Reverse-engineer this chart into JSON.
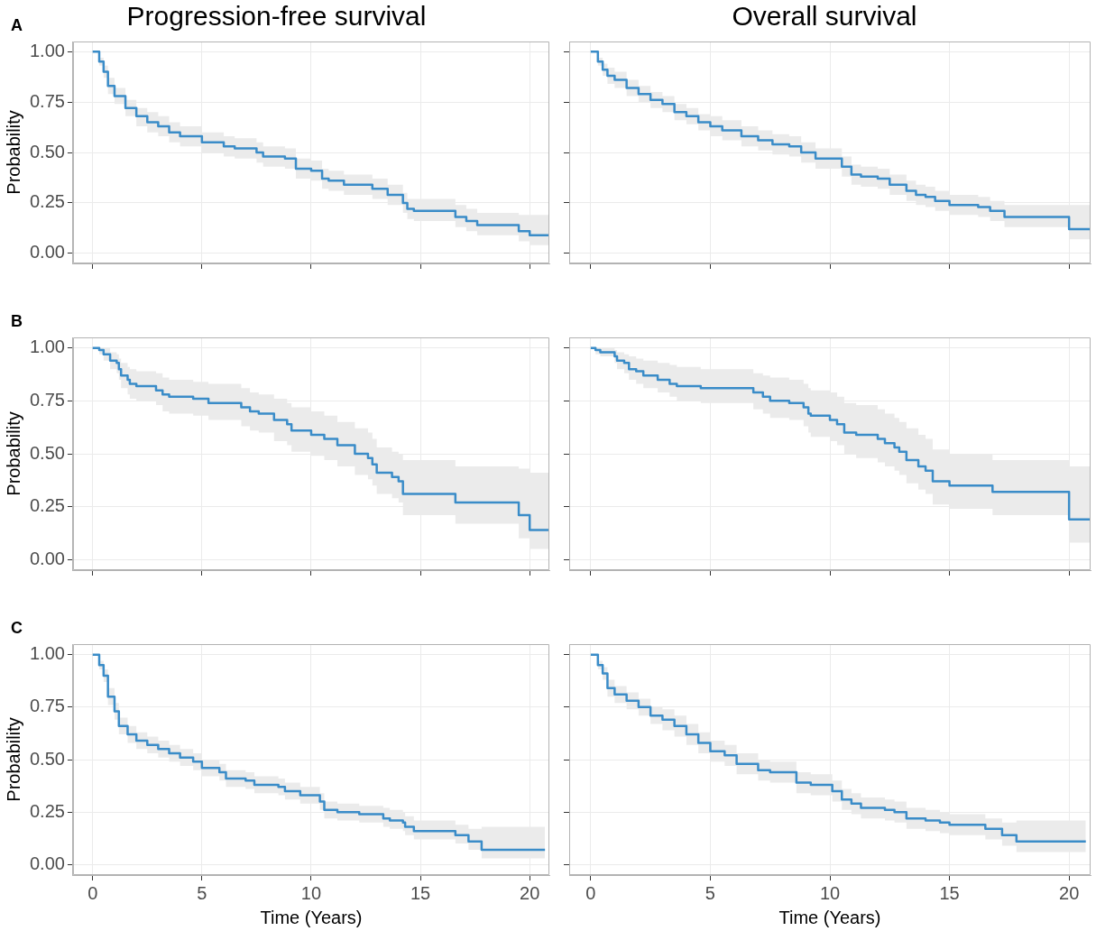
{
  "chart_data": [
    {
      "type": "step",
      "title": "Progression-free survival",
      "annotations": [
        "A"
      ],
      "ylabel": "Probability",
      "tick_labels": "y",
      "grid": true,
      "xlim": [
        -0.9,
        20.9
      ],
      "xticks": [
        {
          "value": 0,
          "label": null
        },
        {
          "value": 5,
          "label": null
        },
        {
          "value": 10,
          "label": null
        },
        {
          "value": 15,
          "label": null
        },
        {
          "value": 20,
          "label": null
        }
      ],
      "ylim": [
        -0.05,
        1.05
      ],
      "yticks": [
        {
          "value": 0,
          "label": "0.00"
        },
        {
          "value": 0.25,
          "label": "0.25"
        },
        {
          "value": 0.5,
          "label": "0.50"
        },
        {
          "value": 0.75,
          "label": "0.75"
        },
        {
          "value": 1,
          "label": "1.00"
        }
      ],
      "series": [
        {
          "color": "#3a8cc8",
          "x": [
            0,
            0.3,
            0.5,
            0.7,
            1.0,
            1.5,
            2.0,
            2.5,
            3.0,
            3.5,
            4.0,
            5.0,
            6.0,
            6.5,
            7.5,
            7.8,
            8.8,
            9.3,
            10.0,
            10.5,
            10.8,
            11.5,
            12.8,
            13.5,
            14.2,
            14.4,
            14.7,
            16.6,
            17.1,
            17.6,
            19.5,
            20.0,
            20.9
          ],
          "values": [
            1.0,
            0.95,
            0.9,
            0.83,
            0.78,
            0.72,
            0.68,
            0.65,
            0.63,
            0.6,
            0.58,
            0.55,
            0.53,
            0.52,
            0.5,
            0.48,
            0.47,
            0.42,
            0.41,
            0.37,
            0.36,
            0.34,
            0.32,
            0.29,
            0.25,
            0.22,
            0.21,
            0.18,
            0.16,
            0.14,
            0.11,
            0.09,
            0.09
          ],
          "lower": [
            1.0,
            0.93,
            0.87,
            0.79,
            0.74,
            0.68,
            0.63,
            0.6,
            0.58,
            0.55,
            0.53,
            0.5,
            0.48,
            0.47,
            0.45,
            0.43,
            0.42,
            0.37,
            0.36,
            0.32,
            0.31,
            0.29,
            0.27,
            0.24,
            0.2,
            0.17,
            0.16,
            0.13,
            0.11,
            0.09,
            0.06,
            0.04,
            0.04
          ],
          "upper": [
            1.0,
            0.97,
            0.93,
            0.87,
            0.82,
            0.76,
            0.72,
            0.7,
            0.68,
            0.65,
            0.63,
            0.6,
            0.58,
            0.57,
            0.55,
            0.53,
            0.52,
            0.47,
            0.46,
            0.42,
            0.41,
            0.39,
            0.37,
            0.34,
            0.3,
            0.27,
            0.27,
            0.24,
            0.22,
            0.2,
            0.19,
            0.19,
            0.19
          ]
        }
      ]
    },
    {
      "type": "step",
      "title": "Overall survival",
      "tick_labels": false,
      "grid": true,
      "xlim": [
        -0.9,
        20.9
      ],
      "xticks": [
        {
          "value": 0,
          "label": null
        },
        {
          "value": 5,
          "label": null
        },
        {
          "value": 10,
          "label": null
        },
        {
          "value": 15,
          "label": null
        },
        {
          "value": 20,
          "label": null
        }
      ],
      "ylim": [
        -0.05,
        1.05
      ],
      "yticks": [
        {
          "value": 0,
          "label": null
        },
        {
          "value": 0.25,
          "label": null
        },
        {
          "value": 0.5,
          "label": null
        },
        {
          "value": 0.75,
          "label": null
        },
        {
          "value": 1,
          "label": null
        }
      ],
      "series": [
        {
          "color": "#3a8cc8",
          "x": [
            0,
            0.3,
            0.5,
            0.7,
            1.0,
            1.5,
            2.0,
            2.5,
            3.0,
            3.5,
            4.0,
            4.5,
            5.0,
            5.5,
            6.3,
            7.0,
            7.6,
            8.3,
            8.8,
            9.4,
            10.0,
            10.5,
            10.9,
            11.3,
            12.0,
            12.5,
            13.2,
            13.6,
            14.0,
            14.4,
            15.0,
            16.2,
            16.7,
            17.3,
            20.0,
            20.9
          ],
          "values": [
            1.0,
            0.95,
            0.91,
            0.88,
            0.86,
            0.82,
            0.79,
            0.76,
            0.74,
            0.7,
            0.68,
            0.65,
            0.63,
            0.61,
            0.58,
            0.56,
            0.54,
            0.53,
            0.5,
            0.47,
            0.47,
            0.43,
            0.39,
            0.38,
            0.37,
            0.34,
            0.31,
            0.29,
            0.28,
            0.26,
            0.24,
            0.23,
            0.21,
            0.18,
            0.12,
            0.12
          ],
          "lower": [
            1.0,
            0.93,
            0.88,
            0.84,
            0.82,
            0.78,
            0.75,
            0.72,
            0.7,
            0.66,
            0.64,
            0.61,
            0.58,
            0.56,
            0.53,
            0.51,
            0.49,
            0.48,
            0.45,
            0.42,
            0.42,
            0.38,
            0.34,
            0.33,
            0.32,
            0.29,
            0.26,
            0.24,
            0.23,
            0.21,
            0.19,
            0.18,
            0.16,
            0.13,
            0.07,
            0.07
          ],
          "upper": [
            1.0,
            0.97,
            0.94,
            0.92,
            0.9,
            0.86,
            0.83,
            0.8,
            0.78,
            0.74,
            0.72,
            0.69,
            0.68,
            0.66,
            0.63,
            0.61,
            0.59,
            0.58,
            0.55,
            0.52,
            0.52,
            0.48,
            0.44,
            0.43,
            0.42,
            0.39,
            0.36,
            0.34,
            0.33,
            0.31,
            0.29,
            0.28,
            0.26,
            0.24,
            0.24,
            0.24
          ]
        }
      ]
    },
    {
      "type": "step",
      "annotations": [
        "B"
      ],
      "ylabel": "Probability",
      "tick_labels": "y",
      "grid": true,
      "xlim": [
        -0.9,
        20.9
      ],
      "xticks": [
        {
          "value": 0,
          "label": null
        },
        {
          "value": 5,
          "label": null
        },
        {
          "value": 10,
          "label": null
        },
        {
          "value": 15,
          "label": null
        },
        {
          "value": 20,
          "label": null
        }
      ],
      "ylim": [
        -0.05,
        1.05
      ],
      "yticks": [
        {
          "value": 0,
          "label": "0.00"
        },
        {
          "value": 0.25,
          "label": "0.25"
        },
        {
          "value": 0.5,
          "label": "0.50"
        },
        {
          "value": 0.75,
          "label": "0.75"
        },
        {
          "value": 1,
          "label": "1.00"
        }
      ],
      "series": [
        {
          "color": "#3a8cc8",
          "x": [
            0,
            0.3,
            0.5,
            0.8,
            1.1,
            1.2,
            1.3,
            1.6,
            1.7,
            2.0,
            2.9,
            3.2,
            3.5,
            4.6,
            5.3,
            6.8,
            7.2,
            7.6,
            8.3,
            8.9,
            9.1,
            10.0,
            10.6,
            11.2,
            12.0,
            12.6,
            12.8,
            13.0,
            13.7,
            14.0,
            14.2,
            16.6,
            19.5,
            20.0,
            20.9
          ],
          "values": [
            1.0,
            0.99,
            0.97,
            0.94,
            0.93,
            0.9,
            0.87,
            0.85,
            0.83,
            0.82,
            0.8,
            0.78,
            0.77,
            0.76,
            0.74,
            0.72,
            0.7,
            0.69,
            0.66,
            0.64,
            0.61,
            0.59,
            0.57,
            0.54,
            0.5,
            0.48,
            0.45,
            0.41,
            0.39,
            0.37,
            0.31,
            0.27,
            0.21,
            0.14,
            0.14
          ],
          "lower": [
            1.0,
            0.97,
            0.94,
            0.9,
            0.88,
            0.85,
            0.81,
            0.78,
            0.76,
            0.75,
            0.73,
            0.7,
            0.69,
            0.68,
            0.66,
            0.63,
            0.61,
            0.6,
            0.56,
            0.54,
            0.51,
            0.49,
            0.47,
            0.44,
            0.4,
            0.38,
            0.35,
            0.31,
            0.29,
            0.27,
            0.21,
            0.17,
            0.1,
            0.05,
            0.05
          ],
          "upper": [
            1.0,
            1.0,
            1.0,
            0.98,
            0.97,
            0.95,
            0.93,
            0.91,
            0.9,
            0.89,
            0.88,
            0.86,
            0.85,
            0.84,
            0.83,
            0.81,
            0.79,
            0.78,
            0.76,
            0.74,
            0.72,
            0.7,
            0.68,
            0.65,
            0.62,
            0.6,
            0.57,
            0.53,
            0.51,
            0.5,
            0.47,
            0.44,
            0.43,
            0.41,
            0.41
          ]
        }
      ]
    },
    {
      "type": "step",
      "tick_labels": false,
      "grid": true,
      "xlim": [
        -0.9,
        20.9
      ],
      "xticks": [
        {
          "value": 0,
          "label": null
        },
        {
          "value": 5,
          "label": null
        },
        {
          "value": 10,
          "label": null
        },
        {
          "value": 15,
          "label": null
        },
        {
          "value": 20,
          "label": null
        }
      ],
      "ylim": [
        -0.05,
        1.05
      ],
      "yticks": [
        {
          "value": 0,
          "label": null
        },
        {
          "value": 0.25,
          "label": null
        },
        {
          "value": 0.5,
          "label": null
        },
        {
          "value": 0.75,
          "label": null
        },
        {
          "value": 1,
          "label": null
        }
      ],
      "series": [
        {
          "color": "#3a8cc8",
          "x": [
            0,
            0.2,
            0.4,
            1.0,
            1.1,
            1.4,
            1.6,
            1.9,
            2.2,
            2.8,
            3.3,
            3.6,
            4.6,
            6.8,
            7.2,
            7.5,
            8.3,
            8.9,
            9.1,
            9.2,
            10.0,
            10.3,
            10.6,
            11.1,
            12.0,
            12.3,
            12.7,
            12.9,
            13.2,
            13.7,
            14.0,
            14.3,
            15.0,
            16.8,
            20.0,
            20.9
          ],
          "values": [
            1.0,
            0.99,
            0.98,
            0.96,
            0.94,
            0.93,
            0.9,
            0.89,
            0.87,
            0.85,
            0.83,
            0.82,
            0.81,
            0.79,
            0.77,
            0.75,
            0.74,
            0.72,
            0.69,
            0.68,
            0.66,
            0.64,
            0.6,
            0.59,
            0.57,
            0.55,
            0.53,
            0.51,
            0.47,
            0.44,
            0.42,
            0.37,
            0.35,
            0.32,
            0.19,
            0.19
          ],
          "lower": [
            1.0,
            0.97,
            0.96,
            0.93,
            0.9,
            0.88,
            0.85,
            0.83,
            0.81,
            0.79,
            0.77,
            0.75,
            0.74,
            0.71,
            0.69,
            0.67,
            0.66,
            0.63,
            0.6,
            0.58,
            0.56,
            0.54,
            0.5,
            0.48,
            0.46,
            0.44,
            0.42,
            0.4,
            0.36,
            0.33,
            0.31,
            0.26,
            0.24,
            0.21,
            0.08,
            0.08
          ],
          "upper": [
            1.0,
            1.0,
            1.0,
            0.99,
            0.98,
            0.97,
            0.96,
            0.95,
            0.94,
            0.93,
            0.92,
            0.91,
            0.9,
            0.88,
            0.87,
            0.86,
            0.85,
            0.83,
            0.81,
            0.8,
            0.79,
            0.77,
            0.74,
            0.73,
            0.71,
            0.69,
            0.67,
            0.65,
            0.62,
            0.59,
            0.57,
            0.52,
            0.5,
            0.47,
            0.44,
            0.44
          ]
        }
      ]
    },
    {
      "type": "step",
      "annotations": [
        "C"
      ],
      "xlabel": "Time (Years)",
      "ylabel": "Probability",
      "grid": true,
      "xlim": [
        -0.9,
        20.9
      ],
      "xticks": [
        0,
        5,
        10,
        15,
        20
      ],
      "ylim": [
        -0.05,
        1.05
      ],
      "yticks": [
        {
          "value": 0,
          "label": "0.00"
        },
        {
          "value": 0.25,
          "label": "0.25"
        },
        {
          "value": 0.5,
          "label": "0.50"
        },
        {
          "value": 0.75,
          "label": "0.75"
        },
        {
          "value": 1,
          "label": "1.00"
        }
      ],
      "series": [
        {
          "color": "#3a8cc8",
          "x": [
            0,
            0.3,
            0.5,
            0.7,
            1.0,
            1.2,
            1.6,
            2.0,
            2.5,
            3.0,
            3.5,
            4.0,
            4.6,
            5.0,
            5.8,
            6.1,
            7.0,
            7.4,
            8.5,
            8.8,
            9.5,
            10.4,
            10.6,
            11.2,
            12.2,
            13.3,
            13.6,
            14.2,
            14.3,
            14.7,
            16.6,
            17.2,
            17.8,
            20.7
          ],
          "values": [
            1.0,
            0.95,
            0.9,
            0.8,
            0.73,
            0.66,
            0.62,
            0.59,
            0.57,
            0.55,
            0.53,
            0.51,
            0.49,
            0.46,
            0.44,
            0.41,
            0.4,
            0.38,
            0.37,
            0.35,
            0.33,
            0.3,
            0.26,
            0.25,
            0.24,
            0.22,
            0.21,
            0.2,
            0.18,
            0.16,
            0.14,
            0.11,
            0.07,
            0.07
          ],
          "lower": [
            1.0,
            0.93,
            0.87,
            0.76,
            0.69,
            0.62,
            0.58,
            0.55,
            0.53,
            0.51,
            0.49,
            0.47,
            0.45,
            0.42,
            0.4,
            0.37,
            0.36,
            0.34,
            0.33,
            0.31,
            0.29,
            0.26,
            0.22,
            0.21,
            0.2,
            0.18,
            0.17,
            0.16,
            0.14,
            0.12,
            0.1,
            0.07,
            0.03,
            0.03
          ],
          "upper": [
            1.0,
            0.97,
            0.93,
            0.84,
            0.77,
            0.7,
            0.66,
            0.63,
            0.61,
            0.59,
            0.57,
            0.55,
            0.53,
            0.5,
            0.48,
            0.45,
            0.44,
            0.42,
            0.41,
            0.39,
            0.37,
            0.34,
            0.3,
            0.29,
            0.28,
            0.27,
            0.26,
            0.25,
            0.23,
            0.21,
            0.19,
            0.17,
            0.18,
            0.18
          ]
        }
      ]
    },
    {
      "type": "step",
      "xlabel": "Time (Years)",
      "tick_labels": "x",
      "grid": true,
      "xlim": [
        -0.9,
        20.9
      ],
      "xticks": [
        0,
        5,
        10,
        15,
        20
      ],
      "ylim": [
        -0.05,
        1.05
      ],
      "yticks": [
        {
          "value": 0,
          "label": null
        },
        {
          "value": 0.25,
          "label": null
        },
        {
          "value": 0.5,
          "label": null
        },
        {
          "value": 0.75,
          "label": null
        },
        {
          "value": 1,
          "label": null
        }
      ],
      "series": [
        {
          "color": "#3a8cc8",
          "x": [
            0,
            0.3,
            0.5,
            0.7,
            1.0,
            1.5,
            2.0,
            2.5,
            3.0,
            3.5,
            4.0,
            4.5,
            5.0,
            5.6,
            6.1,
            7.0,
            7.5,
            8.6,
            9.2,
            10.1,
            10.5,
            10.9,
            11.3,
            12.3,
            12.7,
            13.2,
            14.0,
            14.6,
            15.0,
            16.5,
            17.2,
            17.8,
            20.7
          ],
          "values": [
            1.0,
            0.95,
            0.91,
            0.84,
            0.81,
            0.78,
            0.75,
            0.71,
            0.69,
            0.66,
            0.62,
            0.58,
            0.54,
            0.52,
            0.48,
            0.45,
            0.44,
            0.39,
            0.38,
            0.35,
            0.31,
            0.29,
            0.27,
            0.26,
            0.25,
            0.22,
            0.21,
            0.2,
            0.19,
            0.17,
            0.14,
            0.11,
            0.11
          ],
          "lower": [
            1.0,
            0.93,
            0.88,
            0.8,
            0.77,
            0.74,
            0.71,
            0.67,
            0.64,
            0.61,
            0.57,
            0.53,
            0.49,
            0.47,
            0.43,
            0.4,
            0.39,
            0.34,
            0.33,
            0.3,
            0.26,
            0.24,
            0.22,
            0.21,
            0.2,
            0.17,
            0.16,
            0.15,
            0.14,
            0.12,
            0.09,
            0.06,
            0.06
          ],
          "upper": [
            1.0,
            0.97,
            0.94,
            0.88,
            0.85,
            0.82,
            0.79,
            0.75,
            0.74,
            0.71,
            0.67,
            0.63,
            0.59,
            0.57,
            0.53,
            0.5,
            0.49,
            0.44,
            0.43,
            0.4,
            0.36,
            0.34,
            0.32,
            0.31,
            0.3,
            0.27,
            0.26,
            0.25,
            0.24,
            0.22,
            0.2,
            0.21,
            0.21
          ]
        }
      ]
    }
  ]
}
